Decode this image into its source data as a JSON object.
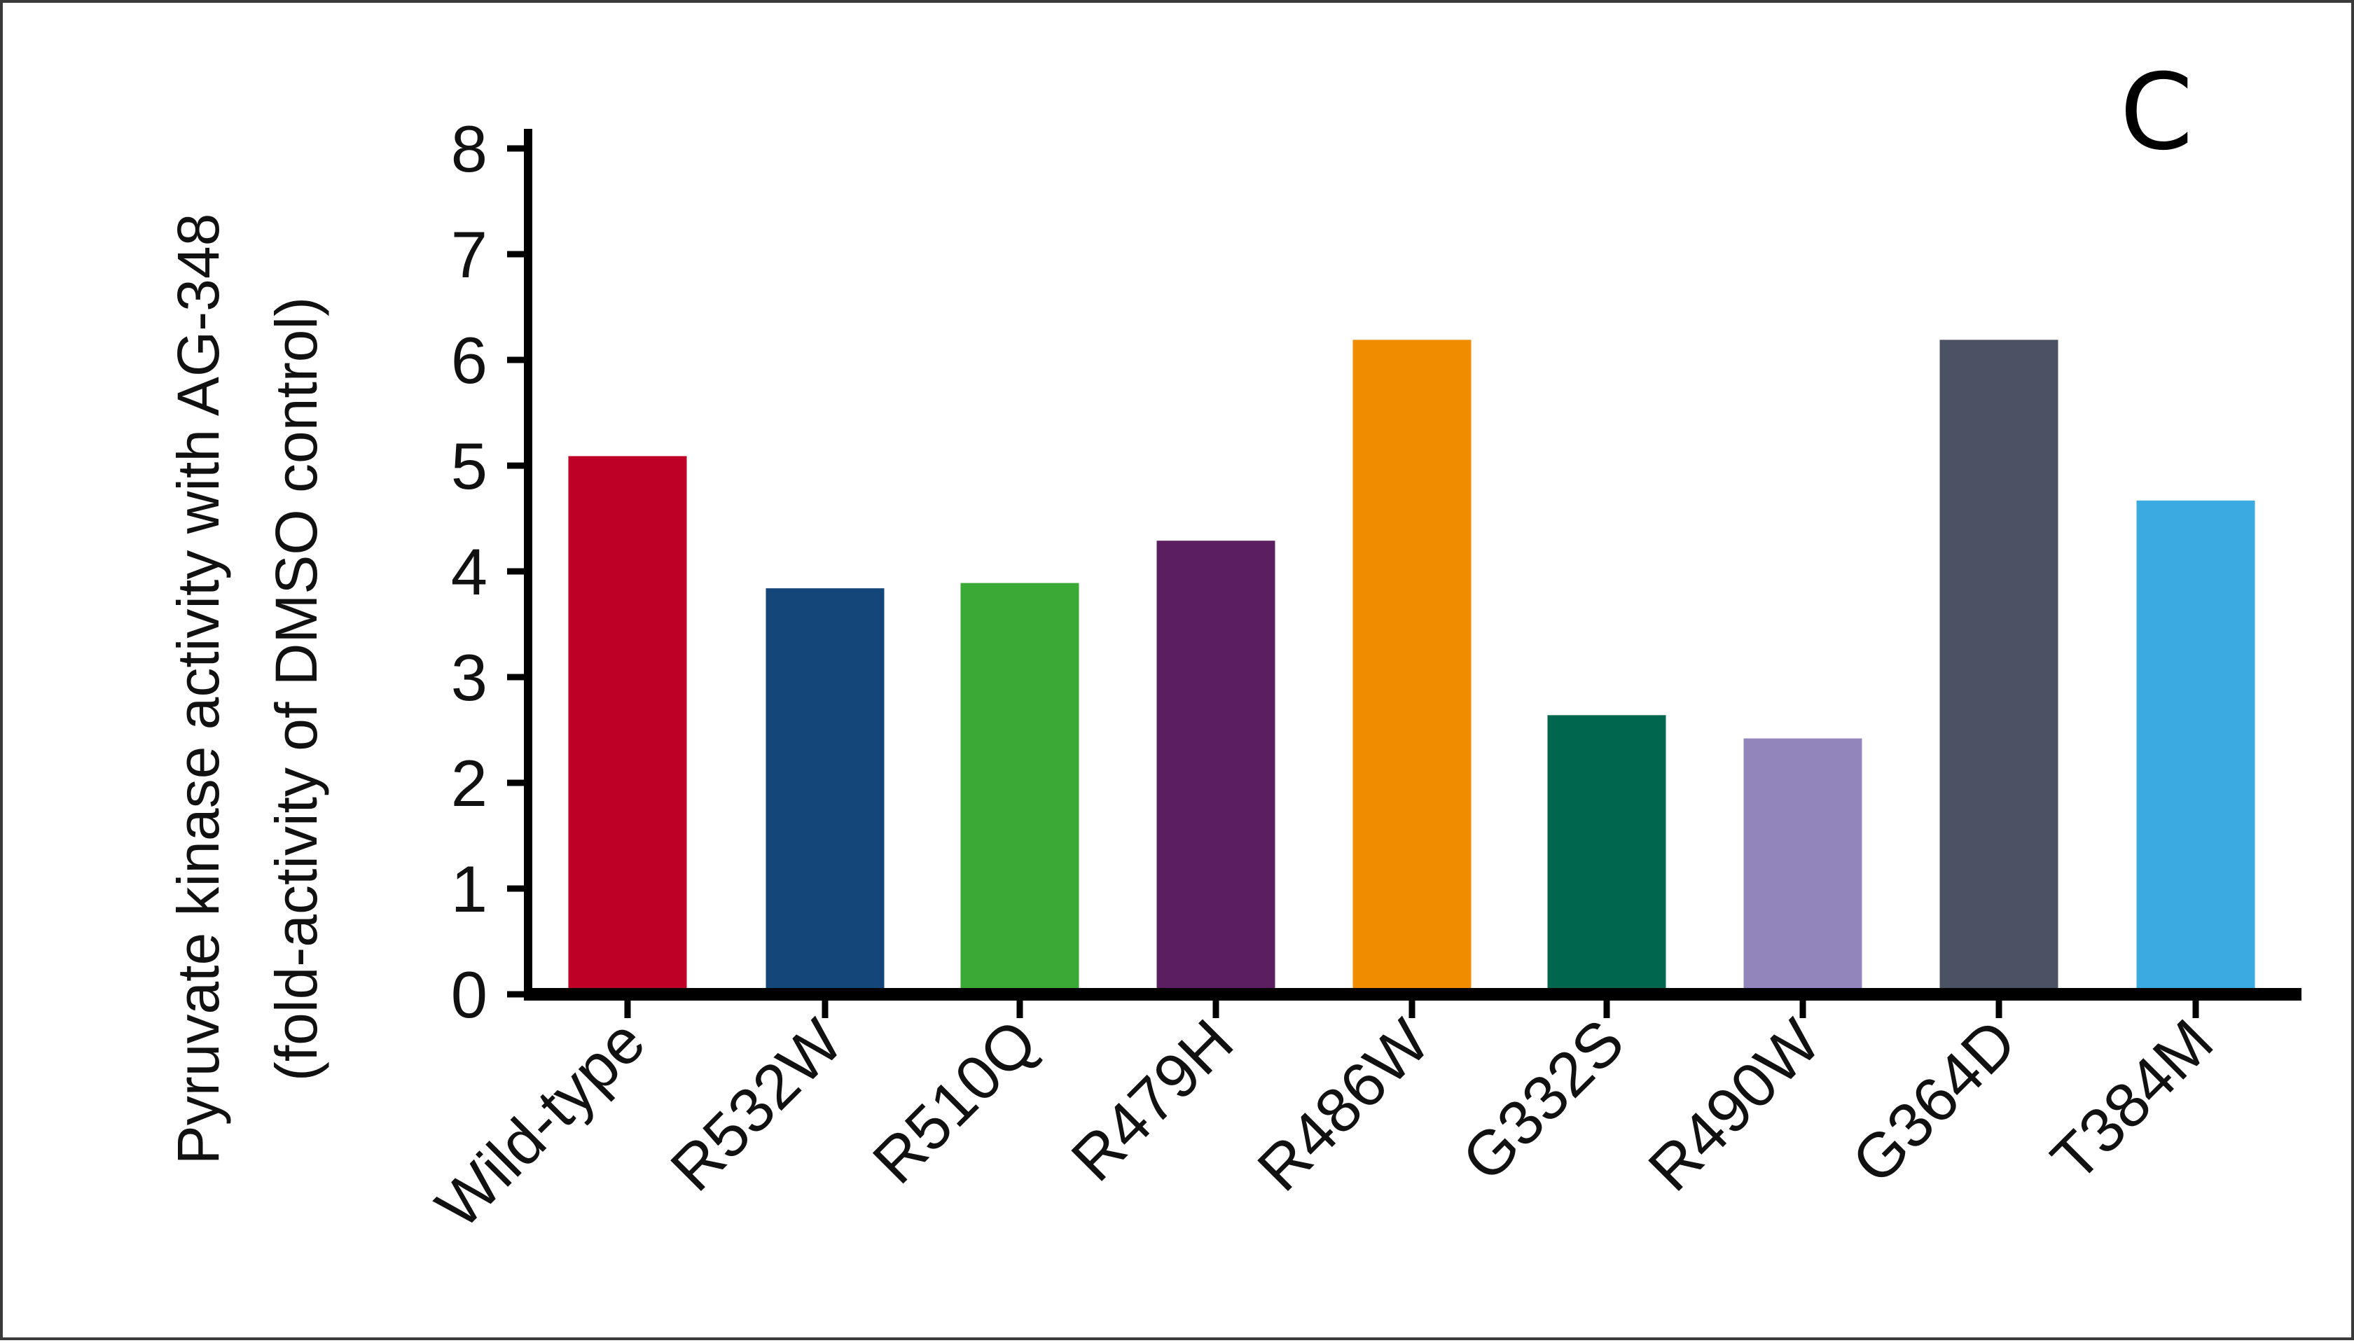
{
  "panel_label": "C",
  "colors": {
    "axis": "#000000",
    "frame": "#3a3a3a"
  },
  "chart_data": {
    "type": "bar",
    "ylabel_lines": [
      "Pyruvate kinase activity with AG-348",
      "(fold-activity of DMSO control)"
    ],
    "ylim": [
      0,
      8
    ],
    "yticks": [
      0,
      1,
      2,
      3,
      4,
      5,
      6,
      7,
      8
    ],
    "categories": [
      "Wild-type",
      "R532W",
      "R510Q",
      "R479H",
      "R486W",
      "G332S",
      "R490W",
      "G364D",
      "T384M"
    ],
    "values": [
      5.1,
      3.85,
      3.9,
      4.3,
      6.2,
      2.65,
      2.43,
      6.2,
      4.68
    ],
    "bar_colors": [
      "#be0027",
      "#14467a",
      "#3aa935",
      "#5b1f5f",
      "#f08c00",
      "#00664d",
      "#9285bb",
      "#4b5263",
      "#3aaae1"
    ],
    "grid": false,
    "legend": "none"
  }
}
